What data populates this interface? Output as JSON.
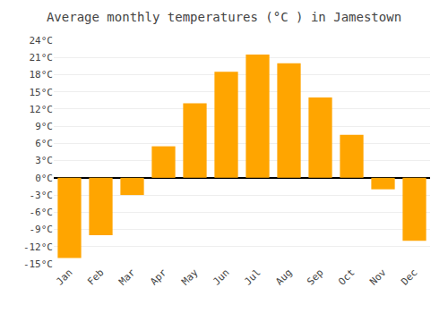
{
  "chart_data": {
    "type": "bar",
    "title": "Average monthly temperatures (°C ) in Jamestown",
    "categories": [
      "Jan",
      "Feb",
      "Mar",
      "Apr",
      "May",
      "Jun",
      "Jul",
      "Aug",
      "Sep",
      "Oct",
      "Nov",
      "Dec"
    ],
    "values": [
      -14,
      -10,
      -3,
      5.5,
      13,
      18.5,
      21.5,
      20,
      14,
      7.5,
      -2,
      -11
    ],
    "color": "#FFA500",
    "ylim": [
      -15,
      24
    ],
    "yticks": [
      {
        "value": -15,
        "label": "-15°C"
      },
      {
        "value": -12,
        "label": "-12°C"
      },
      {
        "value": -9,
        "label": "-9°C"
      },
      {
        "value": -6,
        "label": "-6°C"
      },
      {
        "value": -3,
        "label": "-3°C"
      },
      {
        "value": 0,
        "label": "0°C"
      },
      {
        "value": 3,
        "label": "3°C"
      },
      {
        "value": 6,
        "label": "6°C"
      },
      {
        "value": 9,
        "label": "9°C"
      },
      {
        "value": 12,
        "label": "12°C"
      },
      {
        "value": 15,
        "label": "15°C"
      },
      {
        "value": 18,
        "label": "18°C"
      },
      {
        "value": 21,
        "label": "21°C"
      },
      {
        "value": 24,
        "label": "24°C"
      }
    ],
    "grid": true
  }
}
